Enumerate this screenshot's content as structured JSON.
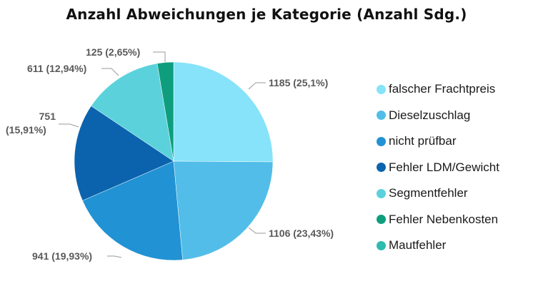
{
  "chart_data": {
    "type": "pie",
    "title": "Anzahl Abweichungen je Kategorie (Anzahl Sdg.)",
    "legend_position": "right",
    "slices": [
      {
        "name": "falscher Frachtpreis",
        "value": 1185,
        "percent": "25,1%",
        "label": "1185 (25,1%)",
        "color": "#86E3F9"
      },
      {
        "name": "Dieselzuschlag",
        "value": 1106,
        "percent": "23,43%",
        "label": "1106 (23,43%)",
        "color": "#52BDE8"
      },
      {
        "name": "nicht prüfbar",
        "value": 941,
        "percent": "19,93%",
        "label": "941 (19,93%)",
        "color": "#2192D3"
      },
      {
        "name": "Fehler LDM/Gewicht",
        "value": 751,
        "percent": "15,91%",
        "label_line1": "751",
        "label_line2": "(15,91%)",
        "color": "#0B63AE"
      },
      {
        "name": "Segmentfehler",
        "value": 611,
        "percent": "12,94%",
        "label": "611 (12,94%)",
        "color": "#5BD2DB"
      },
      {
        "name": "Fehler Nebenkosten",
        "value": 125,
        "percent": "2,65%",
        "label": "125 (2,65%)",
        "color": "#0E9E7E"
      },
      {
        "name": "Mautfehler",
        "value": 0,
        "percent": "0%",
        "color": "#2CBCB0"
      }
    ]
  }
}
